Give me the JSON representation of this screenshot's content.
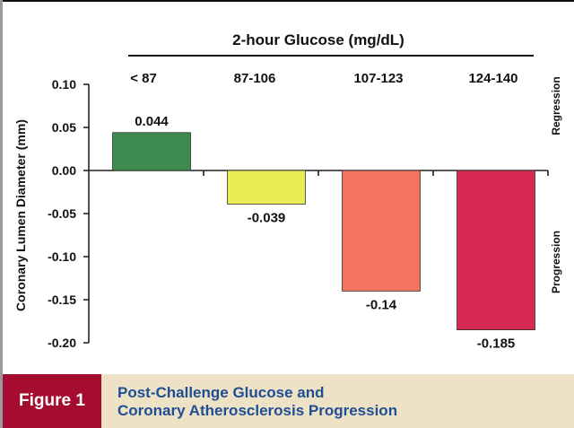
{
  "chart_data": {
    "type": "bar",
    "title": "2-hour Glucose (mg/dL)",
    "xlabel": "2-hour Glucose (mg/dL)",
    "ylabel": "Coronary Lumen Diameter (mm)",
    "categories": [
      "< 87",
      "87-106",
      "107-123",
      "124-140"
    ],
    "values": [
      0.044,
      -0.039,
      -0.14,
      -0.185
    ],
    "data_labels": [
      "0.044",
      "-0.039",
      "-0.14",
      "-0.185"
    ],
    "colors": [
      "#3f8a4f",
      "#eaec55",
      "#f2735e",
      "#d62a52"
    ],
    "ylim": [
      -0.2,
      0.1
    ],
    "yticks": [
      0.1,
      0.05,
      0.0,
      -0.05,
      -0.1,
      -0.15,
      -0.2
    ],
    "ytick_labels": [
      "0.10",
      "0.05",
      "0.00",
      "-0.05",
      "-0.10",
      "-0.15",
      "-0.20"
    ],
    "side_labels": {
      "positive": "Regression",
      "negative": "Progression"
    },
    "grid": false,
    "legend": "none"
  },
  "caption": {
    "figure_label": "Figure 1",
    "title_line1": "Post-Challenge Glucose and",
    "title_line2": "Coronary Atherosclerosis Progression",
    "label_color": "#a50d30",
    "band_color": "#ede2c6",
    "title_color": "#1f4e95"
  }
}
